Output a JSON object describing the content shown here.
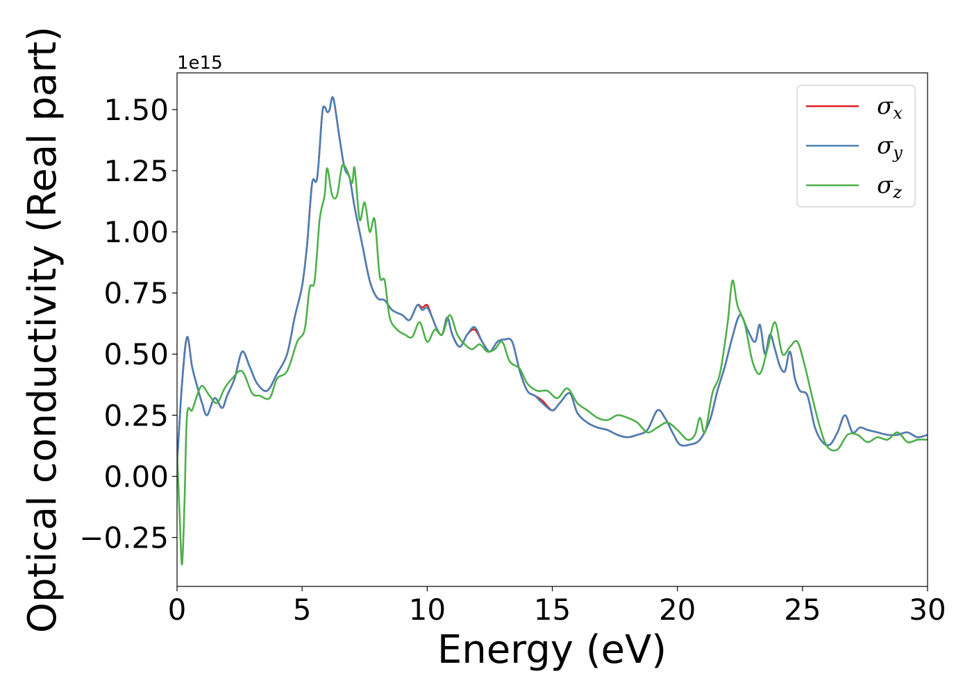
{
  "chart_data": {
    "type": "line",
    "xlabel": "Energy (eV)",
    "ylabel": "Optical conductivity (Real part)",
    "y_offset_label": "1e15",
    "y_scale": 1000000000000000.0,
    "xlim": [
      0,
      30
    ],
    "ylim": [
      -0.45,
      1.65
    ],
    "x_ticks": [
      0,
      5,
      10,
      15,
      20,
      25,
      30
    ],
    "x_tick_labels": [
      "0",
      "5",
      "10",
      "15",
      "20",
      "25",
      "30"
    ],
    "y_ticks": [
      -0.25,
      0,
      0.25,
      0.5,
      0.75,
      1.0,
      1.25,
      1.5
    ],
    "y_tick_labels": [
      "−0.25",
      "0.00",
      "0.25",
      "0.50",
      "0.75",
      "1.00",
      "1.25",
      "1.50"
    ],
    "grid": false,
    "legend_position": "top-right",
    "series": [
      {
        "name": "σx",
        "symbol": "σ",
        "subscript": "x",
        "color": "#e41a1c",
        "x": [
          0,
          0.2,
          0.4,
          0.6,
          0.8,
          1.0,
          1.2,
          1.5,
          1.8,
          2.0,
          2.3,
          2.6,
          2.9,
          3.2,
          3.6,
          4.0,
          4.4,
          4.7,
          5.0,
          5.2,
          5.4,
          5.6,
          5.8,
          5.9,
          6.0,
          6.1,
          6.2,
          6.3,
          6.5,
          6.7,
          6.9,
          7.1,
          7.4,
          7.7,
          8.0,
          8.3,
          8.6,
          9.0,
          9.3,
          9.6,
          9.8,
          10.0,
          10.2,
          10.4,
          10.6,
          10.8,
          11.0,
          11.3,
          11.6,
          11.9,
          12.2,
          12.5,
          12.8,
          13.1,
          13.4,
          13.7,
          14.0,
          14.3,
          14.6,
          15.0,
          15.3,
          15.7,
          16.0,
          16.4,
          16.8,
          17.2,
          17.6,
          18.0,
          18.4,
          18.8,
          19.2,
          19.5,
          19.8,
          20.1,
          20.5,
          20.9,
          21.3,
          21.6,
          21.9,
          22.2,
          22.5,
          22.8,
          23.1,
          23.3,
          23.5,
          23.7,
          23.9,
          24.1,
          24.3,
          24.5,
          24.7,
          24.9,
          25.2,
          25.5,
          25.8,
          26.1,
          26.4,
          26.7,
          27.0,
          27.3,
          27.6,
          28.0,
          28.4,
          28.8,
          29.2,
          29.6,
          30.0
        ],
        "y": [
          0.05,
          0.38,
          0.57,
          0.45,
          0.37,
          0.3,
          0.25,
          0.32,
          0.28,
          0.33,
          0.4,
          0.51,
          0.45,
          0.38,
          0.35,
          0.42,
          0.5,
          0.65,
          0.78,
          0.95,
          1.2,
          1.22,
          1.48,
          1.51,
          1.49,
          1.5,
          1.55,
          1.52,
          1.38,
          1.26,
          1.22,
          1.1,
          0.95,
          0.8,
          0.73,
          0.72,
          0.68,
          0.66,
          0.64,
          0.7,
          0.69,
          0.7,
          0.65,
          0.6,
          0.58,
          0.65,
          0.58,
          0.53,
          0.58,
          0.6,
          0.55,
          0.51,
          0.55,
          0.56,
          0.55,
          0.43,
          0.35,
          0.33,
          0.31,
          0.27,
          0.3,
          0.34,
          0.26,
          0.22,
          0.2,
          0.19,
          0.17,
          0.16,
          0.17,
          0.19,
          0.27,
          0.24,
          0.18,
          0.13,
          0.13,
          0.15,
          0.23,
          0.35,
          0.45,
          0.57,
          0.66,
          0.6,
          0.55,
          0.62,
          0.5,
          0.58,
          0.52,
          0.45,
          0.43,
          0.51,
          0.4,
          0.35,
          0.33,
          0.2,
          0.14,
          0.13,
          0.18,
          0.25,
          0.18,
          0.2,
          0.19,
          0.18,
          0.17,
          0.17,
          0.18,
          0.16,
          0.17
        ]
      },
      {
        "name": "σy",
        "symbol": "σ",
        "subscript": "y",
        "color": "#4a7fb5",
        "x": [
          0,
          0.2,
          0.4,
          0.6,
          0.8,
          1.0,
          1.2,
          1.5,
          1.8,
          2.0,
          2.3,
          2.6,
          2.9,
          3.2,
          3.6,
          4.0,
          4.4,
          4.7,
          5.0,
          5.2,
          5.4,
          5.6,
          5.8,
          5.9,
          6.0,
          6.1,
          6.2,
          6.3,
          6.5,
          6.7,
          6.9,
          7.1,
          7.4,
          7.7,
          8.0,
          8.3,
          8.6,
          9.0,
          9.3,
          9.6,
          9.8,
          10.0,
          10.2,
          10.4,
          10.6,
          10.8,
          11.0,
          11.3,
          11.6,
          11.9,
          12.2,
          12.5,
          12.8,
          13.1,
          13.4,
          13.7,
          14.0,
          14.3,
          14.6,
          15.0,
          15.3,
          15.7,
          16.0,
          16.4,
          16.8,
          17.2,
          17.6,
          18.0,
          18.4,
          18.8,
          19.2,
          19.5,
          19.8,
          20.1,
          20.5,
          20.9,
          21.3,
          21.6,
          21.9,
          22.2,
          22.5,
          22.8,
          23.1,
          23.3,
          23.5,
          23.7,
          23.9,
          24.1,
          24.3,
          24.5,
          24.7,
          24.9,
          25.2,
          25.5,
          25.8,
          26.1,
          26.4,
          26.7,
          27.0,
          27.3,
          27.6,
          28.0,
          28.4,
          28.8,
          29.2,
          29.6,
          30.0
        ],
        "y": [
          0.05,
          0.38,
          0.57,
          0.45,
          0.37,
          0.3,
          0.25,
          0.32,
          0.28,
          0.33,
          0.4,
          0.51,
          0.45,
          0.38,
          0.35,
          0.42,
          0.5,
          0.65,
          0.78,
          0.95,
          1.2,
          1.22,
          1.48,
          1.51,
          1.49,
          1.5,
          1.55,
          1.52,
          1.38,
          1.26,
          1.22,
          1.1,
          0.95,
          0.8,
          0.73,
          0.72,
          0.68,
          0.66,
          0.64,
          0.7,
          0.68,
          0.69,
          0.65,
          0.6,
          0.58,
          0.65,
          0.58,
          0.53,
          0.58,
          0.61,
          0.55,
          0.51,
          0.55,
          0.56,
          0.55,
          0.43,
          0.35,
          0.33,
          0.3,
          0.27,
          0.3,
          0.34,
          0.26,
          0.22,
          0.2,
          0.19,
          0.17,
          0.16,
          0.17,
          0.19,
          0.27,
          0.24,
          0.18,
          0.13,
          0.13,
          0.15,
          0.23,
          0.35,
          0.45,
          0.57,
          0.66,
          0.6,
          0.55,
          0.62,
          0.5,
          0.58,
          0.52,
          0.45,
          0.43,
          0.51,
          0.4,
          0.35,
          0.33,
          0.2,
          0.14,
          0.13,
          0.18,
          0.25,
          0.18,
          0.2,
          0.19,
          0.18,
          0.17,
          0.17,
          0.18,
          0.16,
          0.17
        ]
      },
      {
        "name": "σz",
        "symbol": "σ",
        "subscript": "z",
        "color": "#4daf4a",
        "x": [
          0,
          0.1,
          0.2,
          0.3,
          0.4,
          0.6,
          0.8,
          1.0,
          1.3,
          1.6,
          1.9,
          2.2,
          2.6,
          3.0,
          3.3,
          3.7,
          4.0,
          4.4,
          4.8,
          5.1,
          5.3,
          5.5,
          5.7,
          5.9,
          6.0,
          6.2,
          6.4,
          6.6,
          6.8,
          7.0,
          7.1,
          7.3,
          7.5,
          7.7,
          7.9,
          8.1,
          8.3,
          8.5,
          8.8,
          9.1,
          9.4,
          9.7,
          10.0,
          10.3,
          10.6,
          10.9,
          11.2,
          11.5,
          11.8,
          12.1,
          12.4,
          12.7,
          13.0,
          13.3,
          13.7,
          14.0,
          14.4,
          14.8,
          15.2,
          15.6,
          16.0,
          16.4,
          16.8,
          17.2,
          17.6,
          18.0,
          18.4,
          18.8,
          19.2,
          19.6,
          20.0,
          20.4,
          20.7,
          20.9,
          21.1,
          21.4,
          21.7,
          22.0,
          22.2,
          22.4,
          22.7,
          23.0,
          23.3,
          23.6,
          23.9,
          24.2,
          24.5,
          24.8,
          25.1,
          25.4,
          25.7,
          26.0,
          26.4,
          26.8,
          27.2,
          27.6,
          28.0,
          28.4,
          28.8,
          29.2,
          29.6,
          30.0
        ],
        "y": [
          0.1,
          -0.15,
          -0.36,
          -0.1,
          0.25,
          0.27,
          0.33,
          0.37,
          0.33,
          0.3,
          0.36,
          0.4,
          0.43,
          0.34,
          0.33,
          0.32,
          0.4,
          0.43,
          0.55,
          0.6,
          0.77,
          0.8,
          1.05,
          1.15,
          1.26,
          1.15,
          1.15,
          1.27,
          1.25,
          1.2,
          1.26,
          1.05,
          1.12,
          1.0,
          1.05,
          0.82,
          0.8,
          0.65,
          0.6,
          0.58,
          0.57,
          0.63,
          0.55,
          0.6,
          0.58,
          0.66,
          0.58,
          0.54,
          0.52,
          0.54,
          0.51,
          0.52,
          0.55,
          0.47,
          0.44,
          0.38,
          0.35,
          0.35,
          0.32,
          0.36,
          0.3,
          0.27,
          0.24,
          0.23,
          0.25,
          0.24,
          0.22,
          0.18,
          0.2,
          0.22,
          0.19,
          0.15,
          0.17,
          0.24,
          0.18,
          0.34,
          0.42,
          0.62,
          0.8,
          0.7,
          0.62,
          0.47,
          0.42,
          0.52,
          0.63,
          0.5,
          0.53,
          0.55,
          0.45,
          0.32,
          0.2,
          0.12,
          0.11,
          0.17,
          0.17,
          0.14,
          0.16,
          0.15,
          0.18,
          0.14,
          0.15,
          0.15
        ]
      }
    ]
  }
}
